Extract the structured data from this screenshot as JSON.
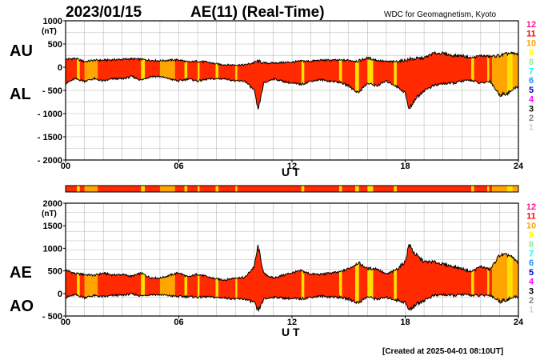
{
  "header": {
    "date": "2023/01/15",
    "title": "AE(11) (Real-Time)",
    "source": "WDC for Geomagnetism, Kyoto"
  },
  "footer": {
    "created": "[Created at 2025-04-01 08:10UT]"
  },
  "legend": {
    "numbers": [
      "12",
      "11",
      "10",
      "9",
      "8",
      "7",
      "6",
      "5",
      "4",
      "3",
      "2",
      "1"
    ],
    "colors": [
      "#ff1493",
      "#ff0000",
      "#ffa500",
      "#ffff00",
      "#90ee90",
      "#00ffff",
      "#1e90ff",
      "#0000cd",
      "#ff00ff",
      "#000000",
      "#808080",
      "#d3d3d3"
    ]
  },
  "colors": {
    "fill_main": "#ff2a00",
    "fill_orange": "#ffa500",
    "fill_yellow": "#ffe000"
  },
  "chart_data": [
    {
      "type": "area",
      "panel": "top",
      "series_labels": [
        "AU",
        "AL"
      ],
      "unit": "(nT)",
      "xlabel": "U T",
      "x_ticks": [
        "00",
        "06",
        "12",
        "18",
        "24"
      ],
      "y_ticks": [
        "1000",
        "500",
        "0",
        "- 500",
        "- 1000",
        "- 1500",
        "- 2000"
      ],
      "y_tick_values": [
        1000,
        500,
        0,
        -500,
        -1000,
        -1500,
        -2000
      ],
      "xlim": [
        0,
        24
      ],
      "ylim": [
        -2000,
        1000
      ],
      "grid": true,
      "x": [
        0,
        0.5,
        1,
        1.5,
        2,
        2.5,
        3,
        3.5,
        4,
        4.5,
        5,
        5.5,
        6,
        6.5,
        7,
        7.5,
        8,
        8.5,
        9,
        9.5,
        10,
        10.2,
        10.5,
        11,
        11.5,
        12,
        12.5,
        13,
        13.5,
        14,
        14.5,
        15,
        15.5,
        16,
        16.5,
        17,
        17.5,
        18,
        18.2,
        18.5,
        19,
        19.5,
        20,
        20.5,
        21,
        21.5,
        22,
        22.5,
        23,
        23.5,
        24
      ],
      "au": [
        170,
        190,
        120,
        150,
        150,
        160,
        170,
        180,
        170,
        150,
        140,
        150,
        160,
        110,
        130,
        110,
        70,
        50,
        50,
        50,
        100,
        130,
        90,
        90,
        100,
        110,
        130,
        130,
        150,
        150,
        150,
        150,
        130,
        200,
        150,
        120,
        120,
        150,
        170,
        180,
        200,
        300,
        300,
        250,
        250,
        200,
        250,
        230,
        250,
        300,
        280
      ],
      "al": [
        -350,
        -250,
        -300,
        -250,
        -300,
        -250,
        -250,
        -200,
        -280,
        -200,
        -200,
        -250,
        -300,
        -250,
        -300,
        -260,
        -250,
        -250,
        -300,
        -300,
        -500,
        -930,
        -350,
        -250,
        -300,
        -350,
        -370,
        -300,
        -270,
        -300,
        -320,
        -400,
        -550,
        -350,
        -400,
        -300,
        -400,
        -550,
        -920,
        -700,
        -500,
        -400,
        -350,
        -350,
        -300,
        -280,
        -350,
        -300,
        -600,
        -550,
        -400
      ],
      "activity_bands": [
        {
          "start": 0.6,
          "end": 0.75,
          "level": "yellow"
        },
        {
          "start": 1.0,
          "end": 1.7,
          "level": "orange"
        },
        {
          "start": 4.0,
          "end": 4.2,
          "level": "yellow"
        },
        {
          "start": 5.0,
          "end": 5.8,
          "level": "orange"
        },
        {
          "start": 6.3,
          "end": 6.45,
          "level": "yellow"
        },
        {
          "start": 7.0,
          "end": 7.1,
          "level": "yellow"
        },
        {
          "start": 7.95,
          "end": 8.1,
          "level": "yellow"
        },
        {
          "start": 9.0,
          "end": 9.1,
          "level": "yellow"
        },
        {
          "start": 12.5,
          "end": 12.65,
          "level": "yellow"
        },
        {
          "start": 14.5,
          "end": 14.65,
          "level": "yellow"
        },
        {
          "start": 15.35,
          "end": 15.55,
          "level": "yellow"
        },
        {
          "start": 16.0,
          "end": 16.3,
          "level": "yellow"
        },
        {
          "start": 17.4,
          "end": 17.55,
          "level": "yellow"
        },
        {
          "start": 21.5,
          "end": 21.65,
          "level": "yellow"
        },
        {
          "start": 22.35,
          "end": 22.45,
          "level": "yellow"
        },
        {
          "start": 22.6,
          "end": 23.4,
          "level": "orange"
        },
        {
          "start": 23.4,
          "end": 23.7,
          "level": "yellow"
        },
        {
          "start": 23.7,
          "end": 24.0,
          "level": "orange"
        }
      ]
    },
    {
      "type": "area",
      "panel": "bottom",
      "series_labels": [
        "AE",
        "AO"
      ],
      "unit": "(nT)",
      "xlabel": "U T",
      "x_ticks": [
        "00",
        "06",
        "12",
        "18",
        "24"
      ],
      "y_ticks": [
        "2000",
        "1500",
        "1000",
        "500",
        "0",
        "- 500"
      ],
      "y_tick_values": [
        2000,
        1500,
        1000,
        500,
        0,
        -500
      ],
      "xlim": [
        0,
        24
      ],
      "ylim": [
        -500,
        2000
      ],
      "grid": true,
      "x": [
        0,
        0.5,
        1,
        1.5,
        2,
        2.5,
        3,
        3.5,
        4,
        4.5,
        5,
        5.5,
        6,
        6.5,
        7,
        7.5,
        8,
        8.5,
        9,
        9.5,
        10,
        10.2,
        10.5,
        11,
        11.5,
        12,
        12.5,
        13,
        13.5,
        14,
        14.5,
        15,
        15.5,
        16,
        16.5,
        17,
        17.5,
        18,
        18.2,
        18.5,
        19,
        19.5,
        20,
        20.5,
        21,
        21.5,
        22,
        22.5,
        23,
        23.5,
        24
      ],
      "ae": [
        520,
        440,
        420,
        400,
        450,
        410,
        420,
        380,
        450,
        350,
        340,
        400,
        460,
        360,
        430,
        370,
        320,
        300,
        350,
        350,
        600,
        1060,
        440,
        340,
        400,
        460,
        500,
        430,
        420,
        450,
        470,
        550,
        680,
        550,
        550,
        420,
        520,
        700,
        1090,
        880,
        700,
        700,
        650,
        600,
        550,
        480,
        600,
        530,
        850,
        850,
        680
      ],
      "ao": [
        -90,
        -30,
        -90,
        -50,
        -75,
        -45,
        -40,
        -10,
        -55,
        -25,
        -30,
        -50,
        -70,
        -70,
        -85,
        -75,
        -90,
        -100,
        -125,
        -125,
        -200,
        -400,
        -130,
        -80,
        -100,
        -120,
        -120,
        -85,
        -60,
        -75,
        -85,
        -125,
        -210,
        -75,
        -125,
        -90,
        -140,
        -200,
        -375,
        -260,
        -150,
        -50,
        -25,
        -50,
        -25,
        -40,
        -50,
        -35,
        -175,
        -125,
        -60
      ],
      "activity_bands": [
        {
          "start": 0.6,
          "end": 0.75,
          "level": "yellow"
        },
        {
          "start": 1.0,
          "end": 1.7,
          "level": "orange"
        },
        {
          "start": 4.0,
          "end": 4.2,
          "level": "yellow"
        },
        {
          "start": 5.0,
          "end": 5.8,
          "level": "orange"
        },
        {
          "start": 6.3,
          "end": 6.45,
          "level": "yellow"
        },
        {
          "start": 7.0,
          "end": 7.1,
          "level": "yellow"
        },
        {
          "start": 7.95,
          "end": 8.1,
          "level": "yellow"
        },
        {
          "start": 9.0,
          "end": 9.1,
          "level": "yellow"
        },
        {
          "start": 12.5,
          "end": 12.65,
          "level": "yellow"
        },
        {
          "start": 14.5,
          "end": 14.65,
          "level": "yellow"
        },
        {
          "start": 15.35,
          "end": 15.55,
          "level": "yellow"
        },
        {
          "start": 16.0,
          "end": 16.3,
          "level": "yellow"
        },
        {
          "start": 17.4,
          "end": 17.55,
          "level": "yellow"
        },
        {
          "start": 21.5,
          "end": 21.65,
          "level": "yellow"
        },
        {
          "start": 22.35,
          "end": 22.45,
          "level": "yellow"
        },
        {
          "start": 22.6,
          "end": 23.4,
          "level": "orange"
        },
        {
          "start": 23.4,
          "end": 23.7,
          "level": "yellow"
        },
        {
          "start": 23.7,
          "end": 24.0,
          "level": "orange"
        }
      ]
    }
  ]
}
